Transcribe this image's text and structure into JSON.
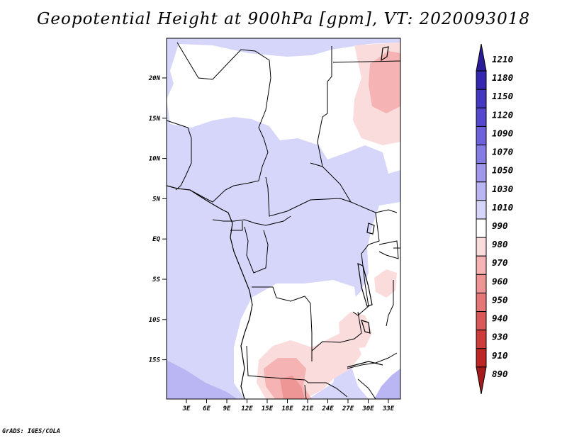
{
  "title": "Geopotential Height at 900hPa [gpm], VT: 2020093018",
  "credit": "GrADS: IGES/COLA",
  "map": {
    "lat_labels": [
      "20N",
      "15N",
      "10N",
      "5N",
      "EQ",
      "5S",
      "10S",
      "15S"
    ],
    "lon_labels": [
      "3E",
      "6E",
      "9E",
      "12E",
      "15E",
      "18E",
      "21E",
      "24E",
      "27E",
      "30E",
      "33E"
    ]
  },
  "colorbar": {
    "levels": [
      "1210",
      "1180",
      "1150",
      "1120",
      "1090",
      "1070",
      "1050",
      "1030",
      "1010",
      "990",
      "980",
      "970",
      "960",
      "950",
      "940",
      "930",
      "910",
      "890"
    ],
    "colors": [
      "#2b1d9a",
      "#3527b0",
      "#4437c2",
      "#5548cf",
      "#6d62db",
      "#857ce4",
      "#9f98ec",
      "#bab5f3",
      "#d6d6fa",
      "#ffffff",
      "#fbdcdc",
      "#f6b3b3",
      "#ee9595",
      "#e57777",
      "#da5858",
      "#ce3b3b",
      "#be2626",
      "#a51b1b"
    ]
  },
  "field_colors": {
    "low_1030": "#bab5f3",
    "mid_1010": "#d6d6fa",
    "neutral": "#ffffff",
    "pink_980": "#fbdcdc",
    "rose_970": "#f6b3b3",
    "red_960": "#ee9595",
    "border": "#000000"
  }
}
